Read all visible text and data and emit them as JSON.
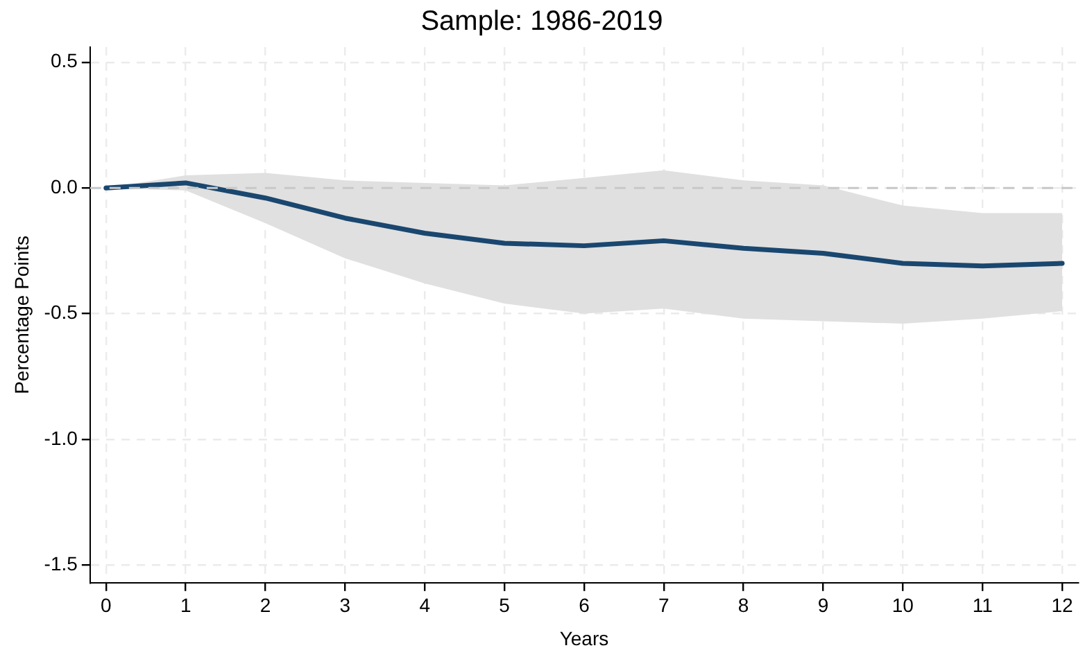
{
  "chart_data": {
    "type": "line",
    "title": "Sample: 1986-2019",
    "xlabel": "Years",
    "ylabel": "Percentage Points",
    "x": [
      0,
      1,
      2,
      3,
      4,
      5,
      6,
      7,
      8,
      9,
      10,
      11,
      12
    ],
    "series": [
      {
        "color": "#1a476f",
        "values": [
          0,
          0.02,
          -0.04,
          -0.12,
          -0.18,
          -0.22,
          -0.23,
          -0.21,
          -0.24,
          -0.26,
          -0.3,
          -0.31,
          -0.3
        ],
        "lower": [
          0,
          -0.01,
          -0.14,
          -0.28,
          -0.38,
          -0.46,
          -0.5,
          -0.48,
          -0.52,
          -0.53,
          -0.54,
          -0.52,
          -0.49
        ],
        "upper": [
          0,
          0.05,
          0.06,
          0.03,
          0.02,
          0.01,
          0.04,
          0.07,
          0.03,
          0.01,
          -0.07,
          -0.1,
          -0.1
        ]
      }
    ],
    "xlim": [
      -0.2,
      12.2
    ],
    "xticks": [
      0,
      1,
      2,
      3,
      4,
      5,
      6,
      7,
      8,
      9,
      10,
      11,
      12
    ],
    "ylim": [
      -1.57,
      0.56
    ],
    "yticks": [
      {
        "value": -1.5,
        "label": "-1.5"
      },
      {
        "value": -1,
        "label": "-1.0"
      },
      {
        "value": -0.5,
        "label": "-0.5"
      },
      {
        "value": 0,
        "label": "0.0"
      },
      {
        "value": 0.5,
        "label": "0.5"
      }
    ],
    "ref_lines": [
      {
        "axis": "y",
        "value": 0,
        "color": "#c8c8c8",
        "line_style": "dashed"
      }
    ],
    "grid": true,
    "legend": false,
    "marker": "none",
    "line_style": "solid"
  }
}
